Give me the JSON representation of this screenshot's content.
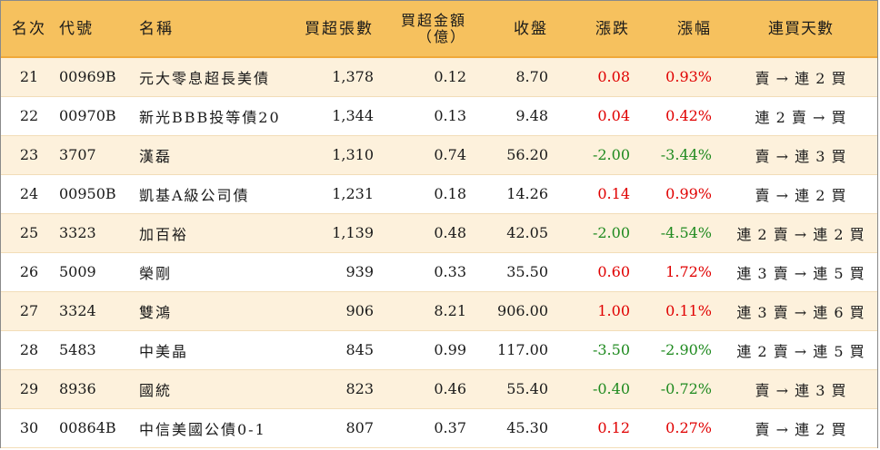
{
  "headers": {
    "rank": "名次",
    "code": "代號",
    "name": "名稱",
    "net_buy_lots": "買超張數",
    "net_buy_amount": "買超金額",
    "net_buy_amount_unit": "（億）",
    "close": "收盤",
    "change": "漲跌",
    "change_pct": "漲幅",
    "consec_days": "連買天數"
  },
  "colors": {
    "header_bg": "#f6c15e",
    "row_alt_bg": "#fdf1dc",
    "up": "#e00000",
    "down": "#1f8a1f"
  },
  "rows": [
    {
      "rank": "21",
      "code": "00969B",
      "name": "元大零息超長美債",
      "lots": "1,378",
      "amount": "0.12",
      "close": "8.70",
      "change": "0.08",
      "pct": "0.93%",
      "dir": "up",
      "days": "賣 → 連 2 買"
    },
    {
      "rank": "22",
      "code": "00970B",
      "name": "新光BBB投等債20",
      "lots": "1,344",
      "amount": "0.13",
      "close": "9.48",
      "change": "0.04",
      "pct": "0.42%",
      "dir": "up",
      "days": "連 2 賣 → 買"
    },
    {
      "rank": "23",
      "code": "3707",
      "name": "漢磊",
      "lots": "1,310",
      "amount": "0.74",
      "close": "56.20",
      "change": "-2.00",
      "pct": "-3.44%",
      "dir": "down",
      "days": "賣 → 連 3 買"
    },
    {
      "rank": "24",
      "code": "00950B",
      "name": "凱基A級公司債",
      "lots": "1,231",
      "amount": "0.18",
      "close": "14.26",
      "change": "0.14",
      "pct": "0.99%",
      "dir": "up",
      "days": "賣 → 連 2 買"
    },
    {
      "rank": "25",
      "code": "3323",
      "name": "加百裕",
      "lots": "1,139",
      "amount": "0.48",
      "close": "42.05",
      "change": "-2.00",
      "pct": "-4.54%",
      "dir": "down",
      "days": "連 2 賣 → 連 2 買"
    },
    {
      "rank": "26",
      "code": "5009",
      "name": "榮剛",
      "lots": "939",
      "amount": "0.33",
      "close": "35.50",
      "change": "0.60",
      "pct": "1.72%",
      "dir": "up",
      "days": "連 3 賣 → 連 5 買"
    },
    {
      "rank": "27",
      "code": "3324",
      "name": "雙鴻",
      "lots": "906",
      "amount": "8.21",
      "close": "906.00",
      "change": "1.00",
      "pct": "0.11%",
      "dir": "up",
      "days": "連 3 賣 → 連 6 買"
    },
    {
      "rank": "28",
      "code": "5483",
      "name": "中美晶",
      "lots": "845",
      "amount": "0.99",
      "close": "117.00",
      "change": "-3.50",
      "pct": "-2.90%",
      "dir": "down",
      "days": "連 2 賣 → 連 5 買"
    },
    {
      "rank": "29",
      "code": "8936",
      "name": "國統",
      "lots": "823",
      "amount": "0.46",
      "close": "55.40",
      "change": "-0.40",
      "pct": "-0.72%",
      "dir": "down",
      "days": "賣 → 連 3 買"
    },
    {
      "rank": "30",
      "code": "00864B",
      "name": "中信美國公債0-1",
      "lots": "807",
      "amount": "0.37",
      "close": "45.30",
      "change": "0.12",
      "pct": "0.27%",
      "dir": "up",
      "days": "賣 → 連 2 買"
    }
  ]
}
